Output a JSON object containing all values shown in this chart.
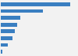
{
  "values": [
    950,
    580,
    270,
    230,
    190,
    160,
    100,
    18
  ],
  "bar_color": "#3a7fc1",
  "background_color": "#f2f2f2",
  "plot_background": "#f2f2f2",
  "bar_height": 0.55,
  "xlim": [
    0,
    1050
  ]
}
